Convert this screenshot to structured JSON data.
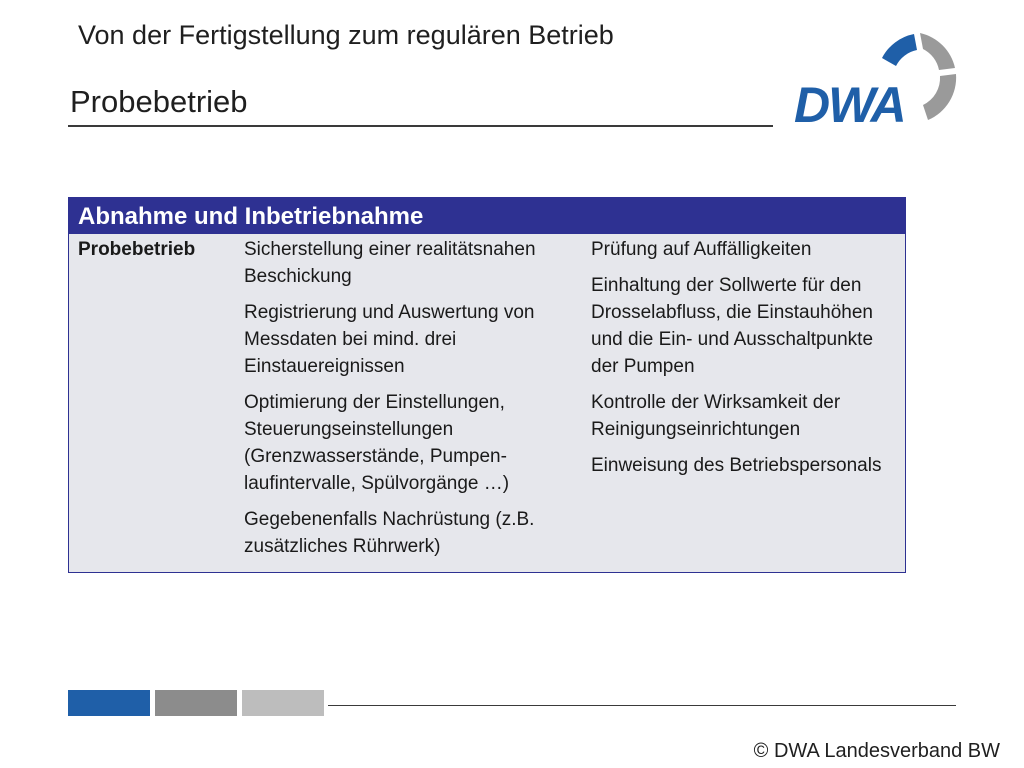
{
  "header": {
    "subtitle": "Von der Fertigstellung zum regulären Betrieb",
    "title": "Probebetrieb"
  },
  "logo": {
    "text": "DWA"
  },
  "table": {
    "header": "Abnahme und Inbetriebnahme",
    "row_label": "Probebetrieb",
    "column2": [
      "Sicherstellung einer realitätsnahen Beschickung",
      "Registrierung und Auswertung von Messdaten bei mind. drei Einstauereignissen",
      "Optimierung der Einstellungen, Steuerungseinstellungen (Grenzwasserstände, Pumpen-laufintervalle, Spülvorgänge …)",
      "Gegebenenfalls Nachrüstung (z.B. zusätzliches Rührwerk)"
    ],
    "column3": [
      "Prüfung auf Auffälligkeiten",
      "Einhaltung der Sollwerte für den Drosselabfluss, die Einstauhöhen und die Ein- und Ausschaltpunkte der Pumpen",
      "Kontrolle der Wirksamkeit der Reinigungseinrichtungen",
      "Einweisung des Betriebspersonals"
    ]
  },
  "footer": {
    "copyright": "© DWA Landesverband BW",
    "bar_colors": [
      "#1f5fa8",
      "#8c8c8c",
      "#bdbdbd"
    ]
  },
  "colors": {
    "accent": "#2e3192",
    "table_bg": "#e6e7ec",
    "logo_blue": "#1f5fa8",
    "logo_gray": "#9a9a9a"
  }
}
